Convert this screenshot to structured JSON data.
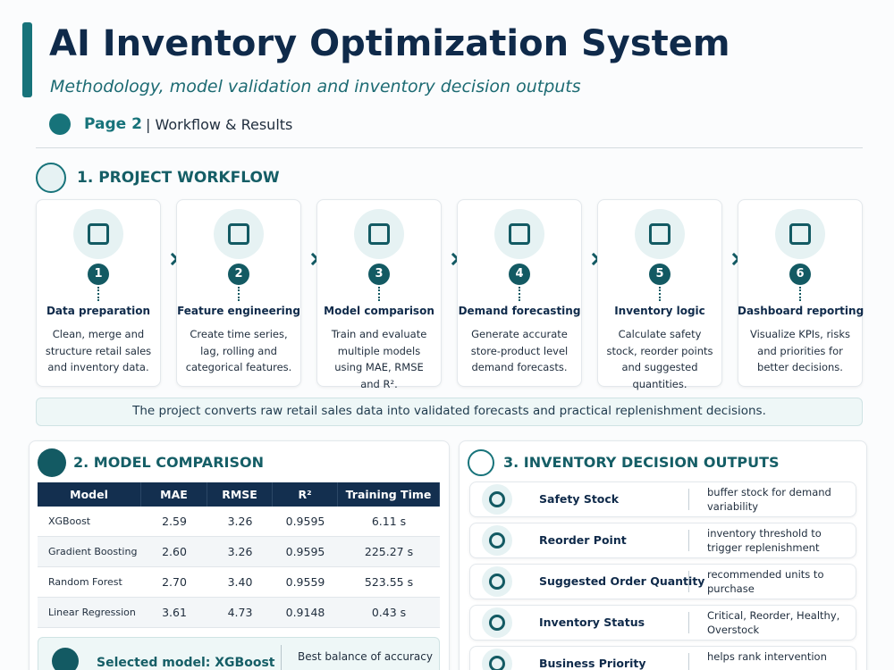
{
  "header": {
    "title": "AI Inventory Optimization System",
    "subtitle": "Methodology, model validation and inventory decision outputs",
    "page_label": "Page 2",
    "page_desc": "| Workflow & Results"
  },
  "workflow": {
    "title": "1. PROJECT WORKFLOW",
    "steps": [
      {
        "number": "1",
        "title": "Data preparation",
        "desc": "Clean, merge and structure retail sales and inventory data."
      },
      {
        "number": "2",
        "title": "Feature engineering",
        "desc": "Create time series, lag, rolling and categorical features."
      },
      {
        "number": "3",
        "title": "Model comparison",
        "desc": "Train and evaluate multiple models using MAE, RMSE and R²."
      },
      {
        "number": "4",
        "title": "Demand forecasting",
        "desc": "Generate accurate store-product level demand forecasts."
      },
      {
        "number": "5",
        "title": "Inventory logic",
        "desc": "Calculate safety stock, reorder points and suggested quantities."
      },
      {
        "number": "6",
        "title": "Dashboard reporting",
        "desc": "Visualize KPIs, risks and priorities for better decisions."
      }
    ],
    "summary": "The project converts raw retail sales data into validated forecasts and practical replenishment decisions."
  },
  "model": {
    "title": "2. MODEL COMPARISON",
    "headers": [
      "Model",
      "MAE",
      "RMSE",
      "R²",
      "Training Time"
    ],
    "rows": [
      [
        "XGBoost",
        "2.59",
        "3.26",
        "0.9595",
        "6.11 s"
      ],
      [
        "Gradient Boosting",
        "2.60",
        "3.26",
        "0.9595",
        "225.27 s"
      ],
      [
        "Random Forest",
        "2.70",
        "3.40",
        "0.9559",
        "523.55 s"
      ],
      [
        "Linear Regression",
        "3.61",
        "4.73",
        "0.9148",
        "0.43 s"
      ]
    ],
    "selected": "Selected model: XGBoost",
    "selected_desc": "Best balance of accuracy"
  },
  "outputs": {
    "title": "3. INVENTORY DECISION OUTPUTS",
    "items": [
      {
        "label": "Safety Stock",
        "desc": "buffer stock for demand variability"
      },
      {
        "label": "Reorder Point",
        "desc": "inventory threshold to trigger replenishment"
      },
      {
        "label": "Suggested Order Quantity",
        "desc": "recommended units to purchase"
      },
      {
        "label": "Inventory Status",
        "desc": "Critical, Reorder, Healthy, Overstock"
      },
      {
        "label": "Business Priority",
        "desc": "helps rank intervention"
      }
    ]
  }
}
